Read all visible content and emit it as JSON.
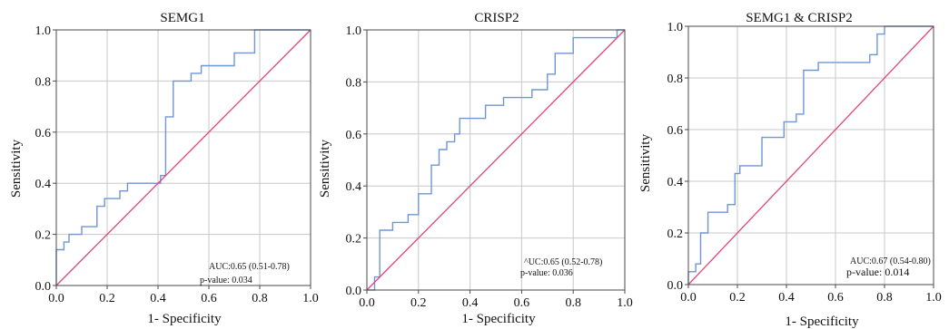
{
  "colors": {
    "roc": "#6f95d4",
    "diagonal": "#e0457b",
    "grid": "#c8c8c8",
    "frame": "#4a4a4a"
  },
  "chart_data": [
    {
      "type": "line",
      "title": "SEMG1",
      "xlabel": "1- Specificity",
      "ylabel": "Sensitivity",
      "xlim": [
        0,
        1
      ],
      "ylim": [
        0,
        1
      ],
      "x_ticks": [
        "0.0",
        "0.2",
        "0.4",
        "0.6",
        "0.8",
        "1.0"
      ],
      "y_ticks": [
        "0.0",
        "0.2",
        "0.4",
        "0.6",
        "0.8",
        "1.0"
      ],
      "grid": true,
      "annotation": {
        "auc": "AUC:0.65 (0.51-0.78)",
        "pvalue": "p-value: 0.034"
      },
      "series": [
        {
          "kind": "roc",
          "points": [
            [
              0,
              0
            ],
            [
              0,
              0.14
            ],
            [
              0.03,
              0.14
            ],
            [
              0.03,
              0.17
            ],
            [
              0.05,
              0.17
            ],
            [
              0.05,
              0.2
            ],
            [
              0.1,
              0.2
            ],
            [
              0.1,
              0.23
            ],
            [
              0.16,
              0.23
            ],
            [
              0.16,
              0.31
            ],
            [
              0.19,
              0.31
            ],
            [
              0.19,
              0.34
            ],
            [
              0.25,
              0.34
            ],
            [
              0.25,
              0.37
            ],
            [
              0.28,
              0.37
            ],
            [
              0.28,
              0.4
            ],
            [
              0.41,
              0.4
            ],
            [
              0.41,
              0.43
            ],
            [
              0.43,
              0.43
            ],
            [
              0.43,
              0.66
            ],
            [
              0.46,
              0.66
            ],
            [
              0.46,
              0.8
            ],
            [
              0.53,
              0.8
            ],
            [
              0.53,
              0.83
            ],
            [
              0.57,
              0.83
            ],
            [
              0.57,
              0.86
            ],
            [
              0.7,
              0.86
            ],
            [
              0.7,
              0.91
            ],
            [
              0.78,
              0.91
            ],
            [
              0.78,
              1.0
            ],
            [
              1.0,
              1.0
            ]
          ]
        },
        {
          "kind": "reference",
          "points": [
            [
              0,
              0
            ],
            [
              1,
              1
            ]
          ]
        }
      ]
    },
    {
      "type": "line",
      "title": "CRISP2",
      "xlabel": "1- Specificity",
      "ylabel": "Sensitivity",
      "xlim": [
        0,
        1
      ],
      "ylim": [
        0,
        1
      ],
      "x_ticks": [
        "0.0",
        "0.2",
        "0.4",
        "0.6",
        "0.8",
        "1.0"
      ],
      "y_ticks": [
        "0.0",
        "0.2",
        "0.4",
        "0.6",
        "0.8",
        "1.0"
      ],
      "grid": true,
      "annotation": {
        "auc": "^UC:0.65 (0.52-0.78)",
        "pvalue": "p-value: 0.036"
      },
      "series": [
        {
          "kind": "roc",
          "points": [
            [
              0,
              0
            ],
            [
              0.03,
              0
            ],
            [
              0.03,
              0.05
            ],
            [
              0.05,
              0.05
            ],
            [
              0.05,
              0.23
            ],
            [
              0.1,
              0.23
            ],
            [
              0.1,
              0.26
            ],
            [
              0.16,
              0.26
            ],
            [
              0.16,
              0.29
            ],
            [
              0.2,
              0.29
            ],
            [
              0.2,
              0.37
            ],
            [
              0.25,
              0.37
            ],
            [
              0.25,
              0.48
            ],
            [
              0.28,
              0.48
            ],
            [
              0.28,
              0.54
            ],
            [
              0.31,
              0.54
            ],
            [
              0.31,
              0.57
            ],
            [
              0.34,
              0.57
            ],
            [
              0.34,
              0.6
            ],
            [
              0.36,
              0.6
            ],
            [
              0.36,
              0.66
            ],
            [
              0.46,
              0.66
            ],
            [
              0.46,
              0.71
            ],
            [
              0.53,
              0.71
            ],
            [
              0.53,
              0.74
            ],
            [
              0.64,
              0.74
            ],
            [
              0.64,
              0.77
            ],
            [
              0.7,
              0.77
            ],
            [
              0.7,
              0.83
            ],
            [
              0.73,
              0.83
            ],
            [
              0.73,
              0.91
            ],
            [
              0.8,
              0.91
            ],
            [
              0.8,
              0.97
            ],
            [
              0.97,
              0.97
            ],
            [
              0.97,
              1.0
            ],
            [
              1.0,
              1.0
            ]
          ]
        },
        {
          "kind": "reference",
          "points": [
            [
              0,
              0
            ],
            [
              1,
              1
            ]
          ]
        }
      ]
    },
    {
      "type": "line",
      "title": "SEMG1 & CRISP2",
      "xlabel": "1- Specificity",
      "ylabel": "Sensitivity",
      "xlim": [
        0,
        1
      ],
      "ylim": [
        0,
        1
      ],
      "x_ticks": [
        "0.0",
        "0.2",
        "0.4",
        "0.6",
        "0.8",
        "1.0"
      ],
      "y_ticks": [
        "0.0",
        "0.2",
        "0.4",
        "0.6",
        "0.8",
        "1.0"
      ],
      "grid": true,
      "annotation": {
        "auc": "AUC:0.67 (0.54-0.80)",
        "pvalue": "p-value: 0.014"
      },
      "series": [
        {
          "kind": "roc",
          "points": [
            [
              0,
              0
            ],
            [
              0,
              0.05
            ],
            [
              0.03,
              0.05
            ],
            [
              0.03,
              0.08
            ],
            [
              0.05,
              0.08
            ],
            [
              0.05,
              0.2
            ],
            [
              0.08,
              0.2
            ],
            [
              0.08,
              0.28
            ],
            [
              0.16,
              0.28
            ],
            [
              0.16,
              0.31
            ],
            [
              0.19,
              0.31
            ],
            [
              0.19,
              0.43
            ],
            [
              0.21,
              0.43
            ],
            [
              0.21,
              0.46
            ],
            [
              0.3,
              0.46
            ],
            [
              0.3,
              0.57
            ],
            [
              0.39,
              0.57
            ],
            [
              0.39,
              0.63
            ],
            [
              0.44,
              0.63
            ],
            [
              0.44,
              0.66
            ],
            [
              0.47,
              0.66
            ],
            [
              0.47,
              0.83
            ],
            [
              0.53,
              0.83
            ],
            [
              0.53,
              0.86
            ],
            [
              0.74,
              0.86
            ],
            [
              0.74,
              0.89
            ],
            [
              0.77,
              0.89
            ],
            [
              0.77,
              0.97
            ],
            [
              0.8,
              0.97
            ],
            [
              0.8,
              1.0
            ],
            [
              1.0,
              1.0
            ]
          ]
        },
        {
          "kind": "reference",
          "points": [
            [
              0,
              0
            ],
            [
              1,
              1
            ]
          ]
        }
      ]
    }
  ]
}
